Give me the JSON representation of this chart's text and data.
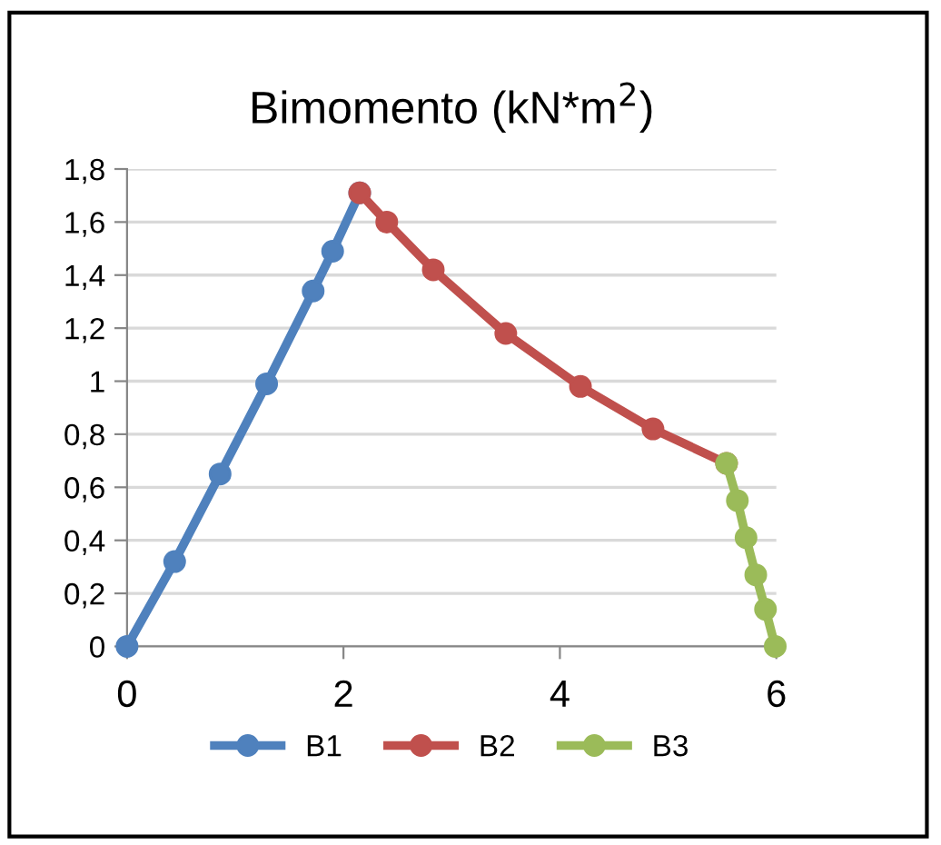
{
  "chart_data": {
    "type": "line",
    "title": "Bimomento (kN*m$^{2}$)",
    "xlim": [
      0,
      6
    ],
    "xticks": [
      0,
      2,
      4,
      6
    ],
    "ylim": [
      0,
      1.8
    ],
    "yticks": [
      0,
      {
        "value": 0.2,
        "label": "0,2"
      },
      {
        "value": 0.4,
        "label": "0,4"
      },
      {
        "value": 0.6,
        "label": "0,6"
      },
      {
        "value": 0.8,
        "label": "0,8"
      },
      1,
      {
        "value": 1.2,
        "label": "1,2"
      },
      {
        "value": 1.4,
        "label": "1,4"
      },
      {
        "value": 1.6,
        "label": "1,6"
      },
      {
        "value": 1.8,
        "label": "1,8"
      }
    ],
    "grid": "y",
    "legend": "bottom",
    "marker": "circle",
    "line_style": "solid",
    "series": [
      {
        "name": "B1",
        "color": "#4f81bd",
        "x": [
          0,
          0.44,
          0.86,
          1.29,
          1.72,
          1.9,
          2.15
        ],
        "values": [
          0,
          0.32,
          0.65,
          0.99,
          1.34,
          1.49,
          1.71
        ]
      },
      {
        "name": "B2",
        "color": "#c0504d",
        "x": [
          2.15,
          2.4,
          2.83,
          3.5,
          4.19,
          4.86,
          5.54
        ],
        "values": [
          1.71,
          1.6,
          1.42,
          1.18,
          0.98,
          0.82,
          0.69
        ]
      },
      {
        "name": "B3",
        "color": "#9bbb59",
        "x": [
          5.54,
          5.64,
          5.72,
          5.81,
          5.9,
          5.99
        ],
        "values": [
          0.69,
          0.55,
          0.41,
          0.27,
          0.14,
          0
        ]
      }
    ]
  }
}
